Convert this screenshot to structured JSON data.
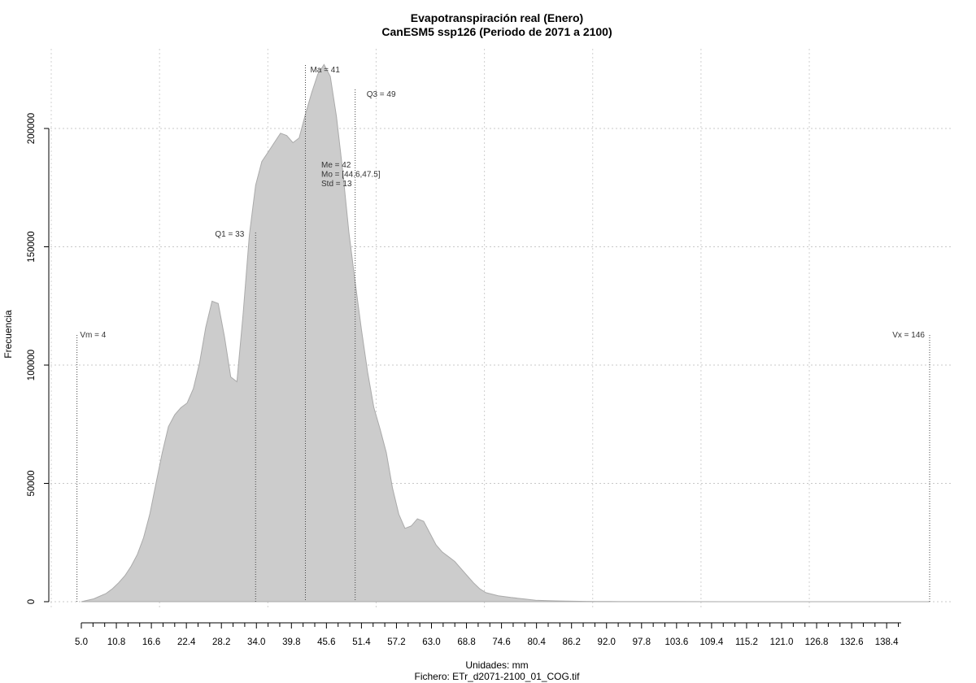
{
  "chart_data": {
    "type": "area",
    "title": "Evapotranspiración real (Enero)",
    "subtitle": "CanESM5 ssp126 (Periodo de 2071 a 2100)",
    "xlabel": "Unidades: mm",
    "caption": "Fichero: ETr_d2071-2100_01_COG.tif",
    "ylabel": "Frecuencia",
    "xlim": [
      5.0,
      141.3
    ],
    "ylim": [
      0,
      228000
    ],
    "x_ticks": [
      "5.0",
      "10.8",
      "16.6",
      "22.4",
      "28.2",
      "34.0",
      "39.8",
      "45.6",
      "51.4",
      "57.2",
      "63.0",
      "68.8",
      "74.6",
      "80.4",
      "86.2",
      "92.0",
      "97.8",
      "103.6",
      "109.4",
      "115.2",
      "121.0",
      "126.8",
      "132.6",
      "138.4"
    ],
    "y_ticks": [
      {
        "value": 0,
        "label": "0"
      },
      {
        "value": 50000,
        "label": "50000"
      },
      {
        "value": 100000,
        "label": "100000"
      },
      {
        "value": 150000,
        "label": "150000"
      },
      {
        "value": 200000,
        "label": "200000"
      }
    ],
    "grid": true,
    "fill_color": "#cccccc",
    "stroke_color": "#aaaaaa",
    "series": [
      {
        "x": [
          5.0,
          7.0,
          9.0,
          10.0,
          11.0,
          12.0,
          13.0,
          14.0,
          15.0,
          16.0,
          17.0,
          18.0,
          19.0,
          20.0,
          21.0,
          22.0,
          23.0,
          24.0,
          25.0,
          26.0,
          27.0,
          28.0,
          29.0,
          30.0,
          31.0,
          32.0,
          33.0,
          34.0,
          35.0,
          36.0,
          37.0,
          38.0,
          39.0,
          40.0,
          41.0,
          42.0,
          43.0,
          44.0,
          45.0,
          46.0,
          47.0,
          48.0,
          49.0,
          50.0,
          51.0,
          52.0,
          53.0,
          54.0,
          55.0,
          56.0,
          57.0,
          58.0,
          59.0,
          60.0,
          61.0,
          62.0,
          63.0,
          64.0,
          65.0,
          66.0,
          67.0,
          68.0,
          69.0,
          70.0,
          72.0,
          74.0,
          76.0,
          78.0,
          80.0,
          82.0,
          84.0,
          86.0,
          88.0,
          90.0,
          95.0,
          100.0,
          110.0,
          120.0,
          130.0,
          140.0,
          141.3
        ],
        "y": [
          0,
          1200,
          3500,
          5500,
          8000,
          11000,
          15000,
          20000,
          27000,
          37000,
          50000,
          63000,
          74000,
          79000,
          82000,
          84000,
          90000,
          101000,
          116000,
          127000,
          126000,
          112000,
          95000,
          93000,
          122000,
          155000,
          176000,
          186000,
          190000,
          194000,
          198000,
          197000,
          194000,
          196000,
          206000,
          215000,
          223000,
          227000,
          222000,
          205000,
          182000,
          156000,
          135000,
          115000,
          97000,
          82000,
          73000,
          63000,
          48000,
          37000,
          31000,
          32000,
          35000,
          34000,
          29000,
          24000,
          21000,
          19000,
          17000,
          14000,
          11000,
          8000,
          5500,
          3800,
          2500,
          1800,
          1200,
          600,
          400,
          300,
          200,
          150,
          100,
          60,
          40,
          20,
          10,
          5,
          0,
          0,
          0
        ]
      }
    ],
    "annotations": {
      "vm": {
        "label": "Vm = 4",
        "x": 4.0
      },
      "vx": {
        "label": "Vx = 146",
        "x": 146.0
      },
      "q1": {
        "label": "Q1 = 33",
        "x": 33.0
      },
      "ma": {
        "label": "Ma = 41",
        "x": 41.0
      },
      "q3": {
        "label": "Q3 = 49",
        "x": 49.0
      },
      "stats": [
        "Me = 42",
        "Mo = [44.6,47.5]",
        "Std = 13"
      ]
    }
  }
}
